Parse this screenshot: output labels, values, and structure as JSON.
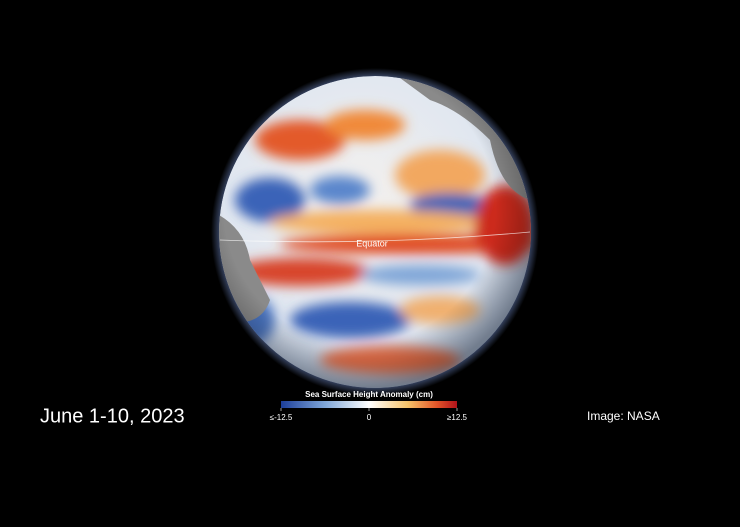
{
  "map": {
    "equator_label": "Equator"
  },
  "legend": {
    "title": "Sea Surface Height Anomaly (cm)",
    "range": [
      -12.5,
      12.5
    ],
    "ticks": [
      {
        "value": -12.5,
        "label": "≤-12.5"
      },
      0,
      {
        "value": 12.5,
        "label": "≥12.5"
      }
    ]
  },
  "caption": {
    "date": "June 1-10, 2023",
    "credit": "Image: NASA"
  }
}
